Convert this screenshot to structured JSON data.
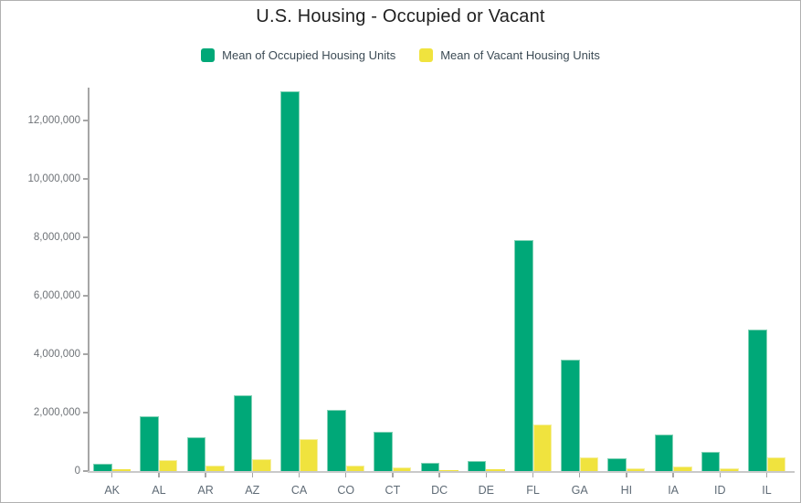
{
  "title": "U.S. Housing - Occupied or Vacant",
  "legend": {
    "items": [
      {
        "label": "Mean of Occupied Housing Units",
        "color": "#00a878",
        "stroke": "#82d2b6"
      },
      {
        "label": "Mean of Vacant Housing Units",
        "color": "#f0e33e",
        "stroke": "#f5efa0"
      }
    ]
  },
  "colors": {
    "occupied": "#00a878",
    "occupied_stroke": "#82d2b6",
    "vacant": "#f0e33e",
    "vacant_stroke": "#f5efa0",
    "axis_line": "#a6a6a6",
    "baseline": "#c9c9c9",
    "y_label_text": "#6e7277",
    "x_label_text": "#5f6b76",
    "title_text": "#212121",
    "legend_text": "#3c4b55",
    "page_border": "#b0b0b0"
  },
  "chart_data": {
    "type": "bar",
    "title": "U.S. Housing - Occupied or Vacant",
    "xlabel": "",
    "ylabel": "",
    "grid": false,
    "legend_position": "top",
    "ylim": [
      0,
      13125000
    ],
    "ytick_interval": 2000000,
    "ytick_labels": [
      "0",
      "2,000,000",
      "4,000,000",
      "6,000,000",
      "8,000,000",
      "10,000,000",
      "12,000,000"
    ],
    "categories": [
      "AK",
      "AL",
      "AR",
      "AZ",
      "CA",
      "CO",
      "CT",
      "DC",
      "DE",
      "FL",
      "GA",
      "HI",
      "IA",
      "ID",
      "IL"
    ],
    "series": [
      {
        "name": "Mean of Occupied Housing Units",
        "color": "#00a878",
        "values": [
          250000,
          1880000,
          1150000,
          2600000,
          13000000,
          2100000,
          1350000,
          280000,
          340000,
          7900000,
          3800000,
          450000,
          1260000,
          650000,
          4850000
        ]
      },
      {
        "name": "Mean of Vacant Housing Units",
        "color": "#f0e33e",
        "values": [
          75000,
          390000,
          200000,
          400000,
          1090000,
          190000,
          120000,
          30000,
          70000,
          1600000,
          480000,
          90000,
          150000,
          100000,
          470000
        ]
      }
    ]
  }
}
